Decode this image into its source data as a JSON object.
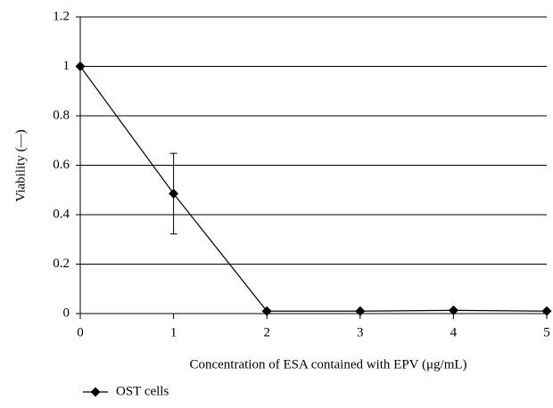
{
  "chart_data": {
    "type": "line",
    "xlabel": "Concentration of ESA contained with EPV (μg/mL)",
    "ylabel": "Viability (—)",
    "x": [
      0,
      1,
      2,
      3,
      4,
      5
    ],
    "series": [
      {
        "name": "OST cells",
        "color": "#000000",
        "values": [
          1,
          0.485,
          0.01,
          0.01,
          0.013,
          0.01
        ],
        "errors": [
          0,
          0.163,
          0,
          0,
          0,
          0
        ]
      }
    ],
    "xlim": [
      0,
      5
    ],
    "xticks": [
      0,
      1,
      2,
      3,
      4,
      5
    ],
    "ylim": [
      0,
      1.2
    ],
    "yticks": [
      0,
      0.2,
      0.4,
      0.6,
      0.8,
      1,
      1.2
    ],
    "grid": true,
    "legend": "bottom-left"
  }
}
